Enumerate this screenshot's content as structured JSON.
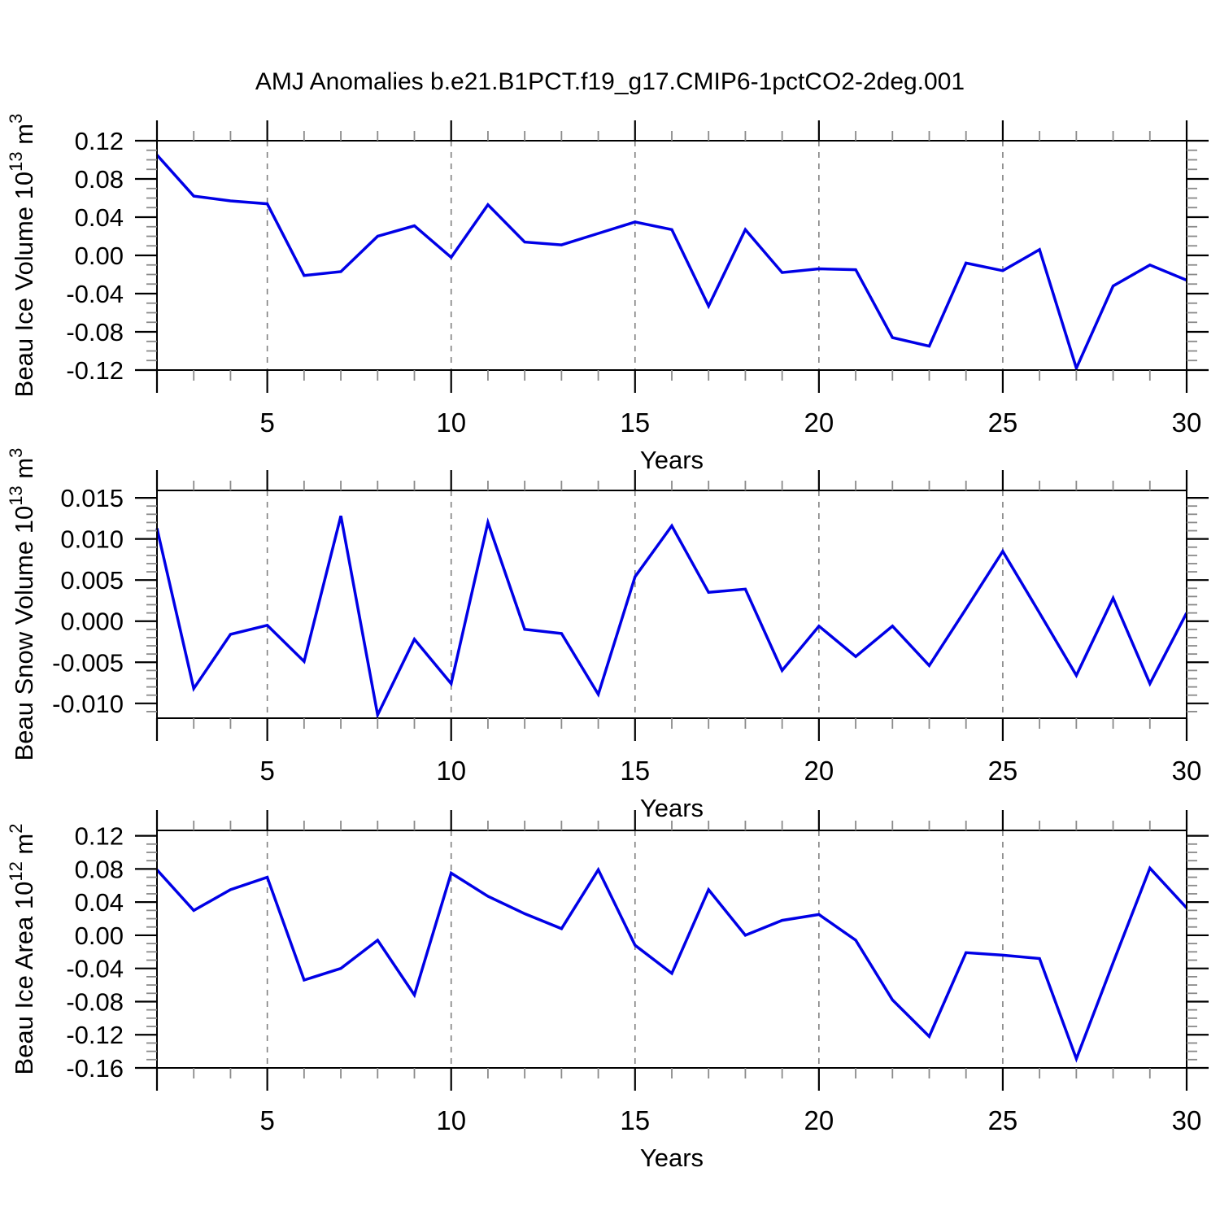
{
  "title": "AMJ Anomalies b.e21.B1PCT.f19_g17.CMIP6-1pctCO2-2deg.001",
  "colors": {
    "line": "#0000E6",
    "grid": "#808080",
    "axis": "#000000",
    "minor_tick": "#8a8a8a",
    "text": "#000000",
    "background": "#ffffff"
  },
  "x_axis": {
    "label": "Years",
    "min": 2,
    "max": 30,
    "major_ticks": [
      5,
      10,
      15,
      20,
      25,
      30
    ],
    "minor_step": 1,
    "gridline_years": [
      5,
      10,
      15,
      20,
      25
    ]
  },
  "chart_data": [
    {
      "type": "line",
      "name": "beau-ice-volume",
      "title": "Beau Ice Volume 10^13 m^3",
      "ylabel": "Beau Ice Volume 10^13 m^3",
      "ylabel_parts": [
        {
          "t": "Beau Ice Volume 10"
        },
        {
          "t": "13",
          "sup": true
        },
        {
          "t": " m"
        },
        {
          "t": "3",
          "sup": true
        }
      ],
      "xlabel": "Years",
      "x": [
        2,
        3,
        4,
        5,
        6,
        7,
        8,
        9,
        10,
        11,
        12,
        13,
        14,
        15,
        16,
        17,
        18,
        19,
        20,
        21,
        22,
        23,
        24,
        25,
        26,
        27,
        28,
        29,
        30
      ],
      "values": [
        0.105,
        0.062,
        0.057,
        0.054,
        -0.021,
        -0.017,
        0.02,
        0.031,
        -0.002,
        0.053,
        0.014,
        0.011,
        0.023,
        0.035,
        0.027,
        -0.053,
        0.027,
        -0.018,
        -0.014,
        -0.015,
        -0.086,
        -0.095,
        -0.008,
        -0.016,
        0.006,
        -0.118,
        -0.032,
        -0.01,
        -0.026
      ],
      "ylim": [
        -0.12,
        0.12
      ],
      "y_major_ticks": [
        0.12,
        0.08,
        0.04,
        0.0,
        -0.04,
        -0.08,
        -0.12
      ],
      "y_minor_step": 0.01,
      "ytick_decimals": 2,
      "grid": "vertical-dashed"
    },
    {
      "type": "line",
      "name": "beau-snow-volume",
      "title": "Beau Snow Volume 10^13 m^3",
      "ylabel": "Beau Snow Volume 10^13 m^3",
      "ylabel_parts": [
        {
          "t": "Beau Snow Volume 10"
        },
        {
          "t": "13",
          "sup": true
        },
        {
          "t": " m"
        },
        {
          "t": "3",
          "sup": true
        }
      ],
      "xlabel": "Years",
      "x": [
        2,
        3,
        4,
        5,
        6,
        7,
        8,
        9,
        10,
        11,
        12,
        13,
        14,
        15,
        16,
        17,
        18,
        19,
        20,
        21,
        22,
        23,
        24,
        25,
        26,
        27,
        28,
        29,
        30
      ],
      "values": [
        0.0113,
        -0.0082,
        -0.0016,
        -0.0005,
        -0.0049,
        0.0128,
        -0.0114,
        -0.0022,
        -0.0076,
        0.012,
        -0.001,
        -0.0015,
        -0.0089,
        0.0054,
        0.0116,
        0.0035,
        0.0039,
        -0.006,
        -0.0006,
        -0.0043,
        -0.0006,
        -0.0054,
        0.0015,
        0.0085,
        0.001,
        -0.0066,
        0.0028,
        -0.0076,
        0.001
      ],
      "ylim": [
        -0.0118,
        0.0159
      ],
      "y_major_ticks": [
        0.015,
        0.01,
        0.005,
        0.0,
        -0.005,
        -0.01
      ],
      "y_minor_step": 0.001,
      "ytick_decimals": 3,
      "grid": "vertical-dashed"
    },
    {
      "type": "line",
      "name": "beau-ice-area",
      "title": "Beau Ice Area 10^12 m^2",
      "ylabel": "Beau Ice Area 10^12 m^2",
      "ylabel_parts": [
        {
          "t": "Beau Ice Area 10"
        },
        {
          "t": "12",
          "sup": true
        },
        {
          "t": " m"
        },
        {
          "t": "2",
          "sup": true
        }
      ],
      "xlabel": "Years",
      "x": [
        2,
        3,
        4,
        5,
        6,
        7,
        8,
        9,
        10,
        11,
        12,
        13,
        14,
        15,
        16,
        17,
        18,
        19,
        20,
        21,
        22,
        23,
        24,
        25,
        26,
        27,
        28,
        29,
        30
      ],
      "values": [
        0.079,
        0.03,
        0.055,
        0.07,
        -0.054,
        -0.04,
        -0.006,
        -0.072,
        0.075,
        0.047,
        0.026,
        0.008,
        0.079,
        -0.012,
        -0.046,
        0.055,
        0.0,
        0.018,
        0.025,
        -0.006,
        -0.078,
        -0.122,
        -0.021,
        -0.024,
        -0.028,
        -0.149,
        -0.033,
        0.081,
        0.033
      ],
      "ylim": [
        -0.16,
        0.1265
      ],
      "y_major_ticks": [
        0.12,
        0.08,
        0.04,
        0.0,
        -0.04,
        -0.08,
        -0.12,
        -0.16
      ],
      "y_minor_step": 0.01,
      "ytick_decimals": 2,
      "grid": "vertical-dashed"
    }
  ]
}
